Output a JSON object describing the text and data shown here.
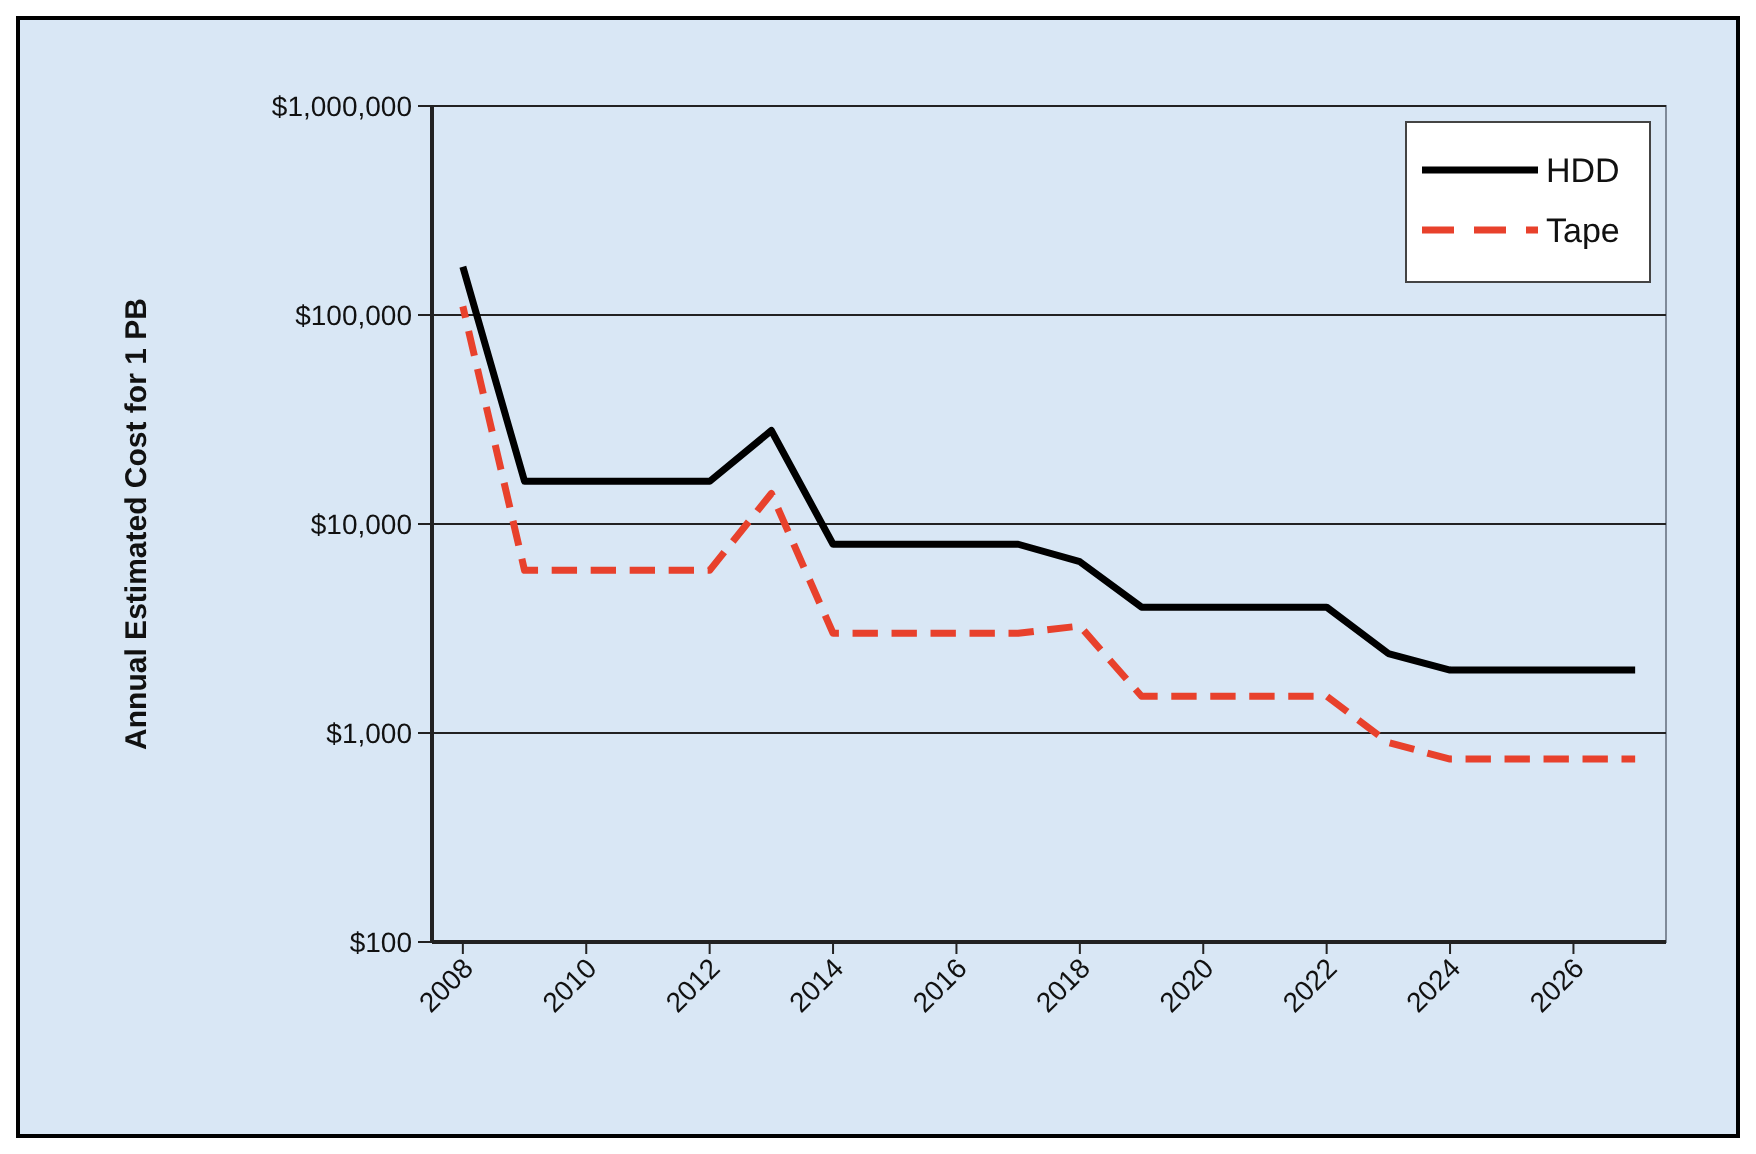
{
  "chart_data": {
    "type": "line",
    "ylabel": "Annual Estimated Cost for 1 PB",
    "log": "y",
    "grid": "y",
    "legend": "top right",
    "xlim": [
      2007.5,
      2027.5
    ],
    "xticks": [
      2008,
      2010,
      2012,
      2014,
      2016,
      2018,
      2020,
      2022,
      2024,
      2026
    ],
    "ylim": [
      100,
      1000000
    ],
    "yticks": [
      {
        "value": 100,
        "label": "$100"
      },
      {
        "value": 1000,
        "label": "$1,000"
      },
      {
        "value": 10000,
        "label": "$10,000"
      },
      {
        "value": 100000,
        "label": "$100,000"
      },
      {
        "value": 1000000,
        "label": "$1,000,000"
      }
    ],
    "x": [
      2008,
      2009,
      2010,
      2011,
      2012,
      2013,
      2014,
      2015,
      2016,
      2017,
      2018,
      2019,
      2020,
      2021,
      2022,
      2023,
      2024,
      2025,
      2026,
      2027
    ],
    "series": [
      {
        "name": "HDD",
        "color": "#000000",
        "line_style": "solid",
        "values": [
          170000,
          16000,
          16000,
          16000,
          16000,
          28000,
          8000,
          8000,
          8000,
          8000,
          6600,
          4000,
          4000,
          4000,
          4000,
          2400,
          2000,
          2000,
          2000,
          2000
        ]
      },
      {
        "name": "Tape",
        "color": "#e8412c",
        "line_style": "dashed",
        "values": [
          110000,
          6000,
          6000,
          6000,
          6000,
          14000,
          3000,
          3000,
          3000,
          3000,
          3250,
          1500,
          1500,
          1500,
          1500,
          900,
          750,
          750,
          750,
          750
        ]
      }
    ]
  }
}
